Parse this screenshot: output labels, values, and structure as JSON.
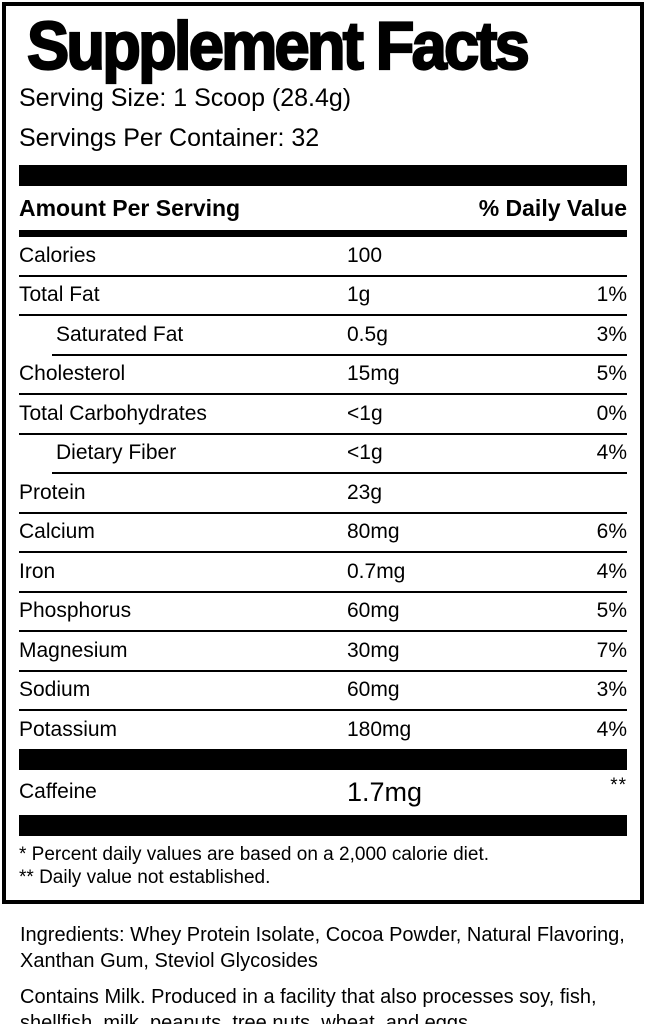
{
  "colors": {
    "ink": "#000000",
    "paper": "#ffffff"
  },
  "label": {
    "title": "Supplement Facts",
    "serving_size": "Serving Size: 1 Scoop (28.4g)",
    "servings_per_container": "Servings Per Container: 32",
    "header": {
      "amount": "Amount Per Serving",
      "daily_value": "% Daily Value"
    },
    "rows": [
      {
        "name": "Calories",
        "amount": "100",
        "dv": "",
        "indent": false
      },
      {
        "name": "Total Fat",
        "amount": "1g",
        "dv": "1%",
        "indent": false
      },
      {
        "name": "Saturated Fat",
        "amount": "0.5g",
        "dv": "3%",
        "indent": true
      },
      {
        "name": "Cholesterol",
        "amount": "15mg",
        "dv": "5%",
        "indent": false
      },
      {
        "name": "Total Carbohydrates",
        "amount": "<1g",
        "dv": "0%",
        "indent": false
      },
      {
        "name": "Dietary Fiber",
        "amount": "<1g",
        "dv": "4%",
        "indent": true
      },
      {
        "name": "Protein",
        "amount": "23g",
        "dv": "",
        "indent": false
      },
      {
        "name": "Calcium",
        "amount": "80mg",
        "dv": "6%",
        "indent": false
      },
      {
        "name": "Iron",
        "amount": "0.7mg",
        "dv": "4%",
        "indent": false
      },
      {
        "name": "Phosphorus",
        "amount": "60mg",
        "dv": "5%",
        "indent": false
      },
      {
        "name": "Magnesium",
        "amount": "30mg",
        "dv": "7%",
        "indent": false
      },
      {
        "name": "Sodium",
        "amount": "60mg",
        "dv": "3%",
        "indent": false
      },
      {
        "name": "Potassium",
        "amount": "180mg",
        "dv": "4%",
        "indent": false
      }
    ],
    "caffeine": {
      "name": "Caffeine",
      "amount": "1.7mg",
      "dv": "**"
    },
    "footnotes": [
      "* Percent daily values are based on a 2,000 calorie diet.",
      "** Daily value not established."
    ]
  },
  "below": {
    "ingredients": "Ingredients: Whey Protein Isolate, Cocoa Powder, Natural Flavoring, Xanthan Gum, Steviol Glycosides",
    "allergen": "Contains Milk. Produced in a facility that also processes soy, fish, shellfish, milk, peanuts, tree nuts, wheat, and eggs."
  }
}
